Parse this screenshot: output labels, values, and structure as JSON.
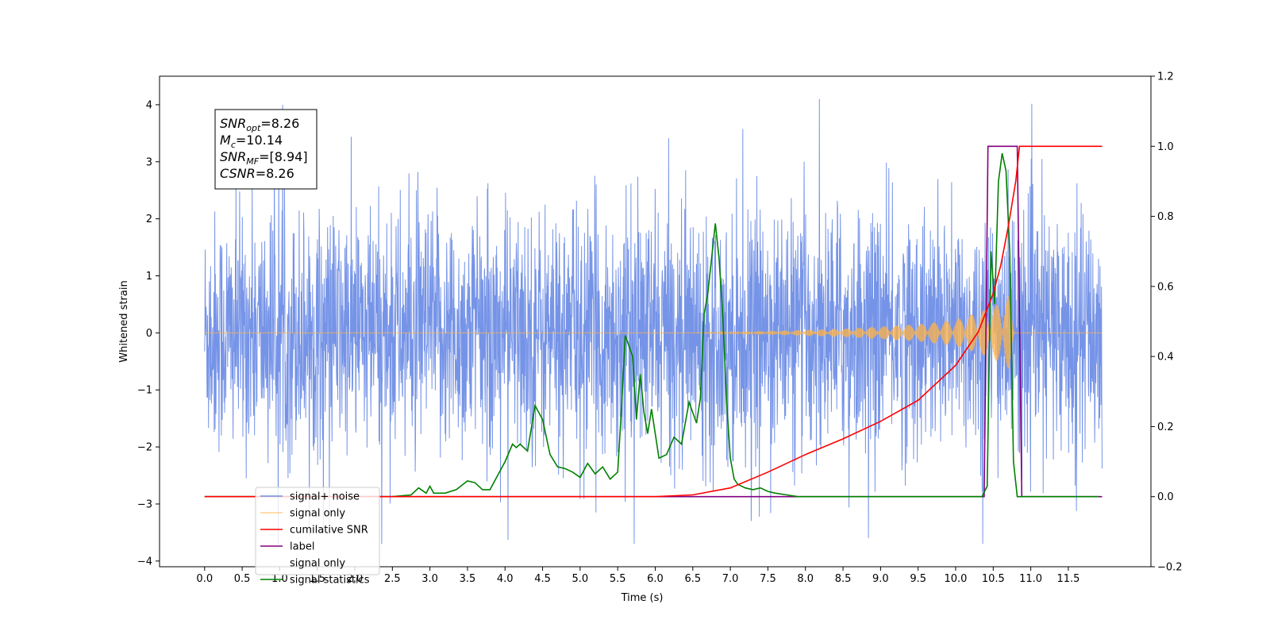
{
  "chart_data": {
    "type": "line",
    "xlabel": "Time (s)",
    "ylabel": "Whitened strain",
    "xlim": [
      -0.6,
      12.6
    ],
    "ylim": [
      -4.1,
      4.5
    ],
    "y2lim": [
      -0.2,
      1.2
    ],
    "x_ticks": [
      "0.0",
      "0.5",
      "1.0",
      "1.5",
      "2.0",
      "2.5",
      "3.0",
      "3.5",
      "4.0",
      "4.5",
      "5.0",
      "5.5",
      "6.0",
      "6.5",
      "7.0",
      "7.5",
      "8.0",
      "8.5",
      "9.0",
      "9.5",
      "10.0",
      "10.5",
      "11.0",
      "11.5"
    ],
    "y_ticks": [
      "4",
      "3",
      "2",
      "1",
      "0",
      "−1",
      "−2",
      "−3",
      "−4"
    ],
    "y2_ticks": [
      "1.2",
      "1.0",
      "0.8",
      "0.6",
      "0.4",
      "0.2",
      "0.0",
      "−0.2"
    ],
    "stats": {
      "lines": [
        {
          "sym": "SNR",
          "sub": "opt",
          "val": "=8.26"
        },
        {
          "sym": "M",
          "sub": "c",
          "val": "=10.14"
        },
        {
          "sym": "SNR",
          "sub": "MF",
          "val": "=[8.94]"
        },
        {
          "sym": "CSNR",
          "sub": "",
          "val": "=8.26"
        }
      ]
    },
    "legend": {
      "placement": "lower-left",
      "entries": [
        "signal+ noise",
        "signal only",
        "cumilative SNR",
        "label",
        "signal only",
        "signal statistics"
      ]
    },
    "colors": {
      "noise": "#6f8ee6",
      "signal": "#ffb347",
      "cumsnr": "#ff0000",
      "label": "#800080",
      "stat": "#008000"
    },
    "series": [
      {
        "name": "signal+ noise",
        "axis": "left",
        "description_values": "random whitened noise, amplitude ~ +/-2.4 in [0, 12]",
        "envelope": [
          2.4,
          2.4
        ]
      },
      {
        "name": "signal only",
        "axis": "left",
        "chirp_envelope": {
          "x": [
            0.0,
            6.5,
            7.5,
            8.5,
            9.5,
            10.0,
            10.5,
            10.7,
            10.8,
            10.9,
            11.95
          ],
          "amp": [
            0.0,
            0.0,
            0.03,
            0.07,
            0.15,
            0.23,
            0.45,
            0.65,
            0.0,
            0.0,
            0.0
          ]
        }
      },
      {
        "name": "cumilative SNR",
        "axis": "right",
        "x": [
          0.0,
          6.0,
          6.5,
          7.0,
          7.5,
          8.0,
          8.5,
          9.0,
          9.5,
          10.0,
          10.3,
          10.5,
          10.6,
          10.7,
          10.8,
          10.85,
          11.95
        ],
        "y": [
          0.0,
          0.0,
          0.005,
          0.025,
          0.07,
          0.12,
          0.165,
          0.215,
          0.275,
          0.375,
          0.47,
          0.58,
          0.66,
          0.77,
          0.9,
          1.0,
          1.0
        ]
      },
      {
        "name": "label",
        "axis": "right",
        "x": [
          0.0,
          10.38,
          10.43,
          10.82,
          10.88,
          11.95
        ],
        "y": [
          0.0,
          0.0,
          1.0,
          1.0,
          0.0,
          0.0
        ]
      },
      {
        "name": "signal statistics",
        "axis": "right",
        "x": [
          0.0,
          2.5,
          2.75,
          2.85,
          2.95,
          3.0,
          3.05,
          3.2,
          3.35,
          3.5,
          3.6,
          3.7,
          3.8,
          3.9,
          4.0,
          4.1,
          4.15,
          4.2,
          4.3,
          4.4,
          4.5,
          4.55,
          4.6,
          4.7,
          4.8,
          4.9,
          5.0,
          5.1,
          5.2,
          5.3,
          5.4,
          5.5,
          5.55,
          5.6,
          5.65,
          5.7,
          5.75,
          5.8,
          5.85,
          5.9,
          5.95,
          6.05,
          6.15,
          6.25,
          6.35,
          6.45,
          6.55,
          6.6,
          6.65,
          6.7,
          6.75,
          6.8,
          6.85,
          6.9,
          6.95,
          7.0,
          7.05,
          7.1,
          7.2,
          7.3,
          7.4,
          7.5,
          7.6,
          7.75,
          7.9,
          8.0,
          8.2,
          9.0,
          10.2,
          10.35,
          10.42,
          10.47,
          10.52,
          10.57,
          10.62,
          10.67,
          10.72,
          10.77,
          10.82,
          10.87,
          10.9,
          11.0,
          11.9
        ],
        "y": [
          0.0,
          0.0,
          0.005,
          0.025,
          0.01,
          0.03,
          0.01,
          0.01,
          0.02,
          0.045,
          0.04,
          0.02,
          0.02,
          0.06,
          0.1,
          0.15,
          0.14,
          0.15,
          0.13,
          0.26,
          0.22,
          0.17,
          0.12,
          0.085,
          0.08,
          0.07,
          0.055,
          0.095,
          0.065,
          0.085,
          0.05,
          0.07,
          0.25,
          0.46,
          0.43,
          0.4,
          0.22,
          0.35,
          0.24,
          0.18,
          0.25,
          0.11,
          0.12,
          0.17,
          0.15,
          0.27,
          0.21,
          0.28,
          0.52,
          0.58,
          0.68,
          0.78,
          0.68,
          0.51,
          0.27,
          0.11,
          0.05,
          0.035,
          0.025,
          0.02,
          0.025,
          0.015,
          0.01,
          0.005,
          0.0,
          0.0,
          0.0,
          0.0,
          0.0,
          0.0,
          0.03,
          0.7,
          0.55,
          0.9,
          0.98,
          0.93,
          0.7,
          0.1,
          0.0,
          0.0,
          0.0,
          0.0,
          0.0
        ]
      }
    ]
  }
}
